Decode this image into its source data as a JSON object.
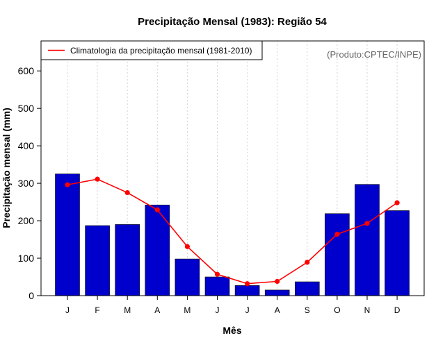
{
  "chart_data": {
    "type": "bar",
    "title": "Precipitação Mensal (1983): Região 54",
    "xlabel": "Mês",
    "ylabel": "Precipitação mensal (mm)",
    "ylim": [
      0,
      680
    ],
    "yticks": [
      0,
      100,
      200,
      300,
      400,
      500,
      600
    ],
    "categories": [
      "J",
      "F",
      "M",
      "A",
      "M",
      "J",
      "J",
      "A",
      "S",
      "O",
      "N",
      "D"
    ],
    "series": [
      {
        "name": "Precipitação mensal 1983",
        "type": "bar",
        "color": "#0000cd",
        "values": [
          325,
          187,
          190,
          242,
          98,
          50,
          27,
          15,
          37,
          219,
          297,
          227
        ]
      },
      {
        "name": "Climatologia da precipitação mensal (1981-2010)",
        "type": "line",
        "color": "#ff0000",
        "values": [
          296,
          311,
          275,
          229,
          131,
          57,
          32,
          38,
          89,
          164,
          193,
          248
        ]
      }
    ],
    "legend": {
      "position": "top-left",
      "entries": [
        "Climatologia da precipitação mensal (1981-2010)"
      ]
    },
    "annotations": [
      "(Produto:CPTEC/INPE)"
    ],
    "grid": "vertical-dotted"
  }
}
